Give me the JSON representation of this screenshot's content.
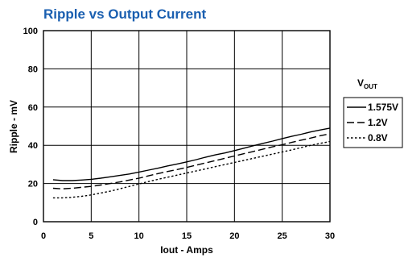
{
  "chart_data": {
    "type": "line",
    "title": "Ripple vs Output Current",
    "xlabel": "Iout - Amps",
    "ylabel": "Ripple - mV",
    "xlim": [
      0,
      30
    ],
    "ylim": [
      0,
      100
    ],
    "x_ticks": [
      "0",
      "5",
      "10",
      "15",
      "20",
      "25",
      "30"
    ],
    "y_ticks": [
      "0",
      "20",
      "40",
      "60",
      "80",
      "100"
    ],
    "grid": true,
    "legend_position": "right",
    "legend_title": "VOUT",
    "legend_title_main": "V",
    "legend_title_sub": "OUT",
    "series": [
      {
        "name": "1.575V",
        "style": "solid",
        "x": [
          1,
          2,
          3,
          4,
          5,
          6,
          7,
          8,
          9,
          10,
          11,
          12,
          13,
          14,
          15,
          16,
          17,
          18,
          19,
          20,
          21,
          22,
          23,
          24,
          25,
          26,
          27,
          28,
          29,
          30
        ],
        "y": [
          22,
          21.5,
          21.5,
          21.8,
          22.2,
          22.8,
          23.5,
          24.2,
          25,
          26,
          27,
          28,
          29.2,
          30.2,
          31.3,
          32.5,
          33.8,
          35,
          36,
          37.2,
          38.5,
          39.8,
          41,
          42.2,
          43.5,
          44.7,
          45.8,
          47,
          48,
          49
        ]
      },
      {
        "name": "1.2V",
        "style": "dashed",
        "x": [
          1,
          2,
          3,
          4,
          5,
          6,
          7,
          8,
          9,
          10,
          11,
          12,
          13,
          14,
          15,
          16,
          17,
          18,
          19,
          20,
          21,
          22,
          23,
          24,
          25,
          26,
          27,
          28,
          29,
          30
        ],
        "y": [
          17.5,
          17.2,
          17.5,
          18,
          18.5,
          19.2,
          20,
          20.8,
          21.8,
          22.8,
          24,
          25.2,
          26.3,
          27.3,
          28.4,
          29.6,
          30.8,
          32,
          33.2,
          34.4,
          35.6,
          36.8,
          38,
          39.2,
          40.3,
          41.5,
          42.7,
          43.8,
          45,
          46
        ]
      },
      {
        "name": "0.8V",
        "style": "dotted",
        "x": [
          1,
          2,
          3,
          4,
          5,
          6,
          7,
          8,
          9,
          10,
          11,
          12,
          13,
          14,
          15,
          16,
          17,
          18,
          19,
          20,
          21,
          22,
          23,
          24,
          25,
          26,
          27,
          28,
          29,
          30
        ],
        "y": [
          12.5,
          12.5,
          12.8,
          13.3,
          14,
          15,
          16,
          17.2,
          18.5,
          19.8,
          21,
          22.2,
          23.3,
          24.4,
          25.5,
          26.6,
          27.7,
          28.8,
          29.9,
          31,
          32.1,
          33.2,
          34.3,
          35.4,
          36.5,
          37.6,
          38.8,
          40,
          41,
          42
        ]
      }
    ]
  }
}
